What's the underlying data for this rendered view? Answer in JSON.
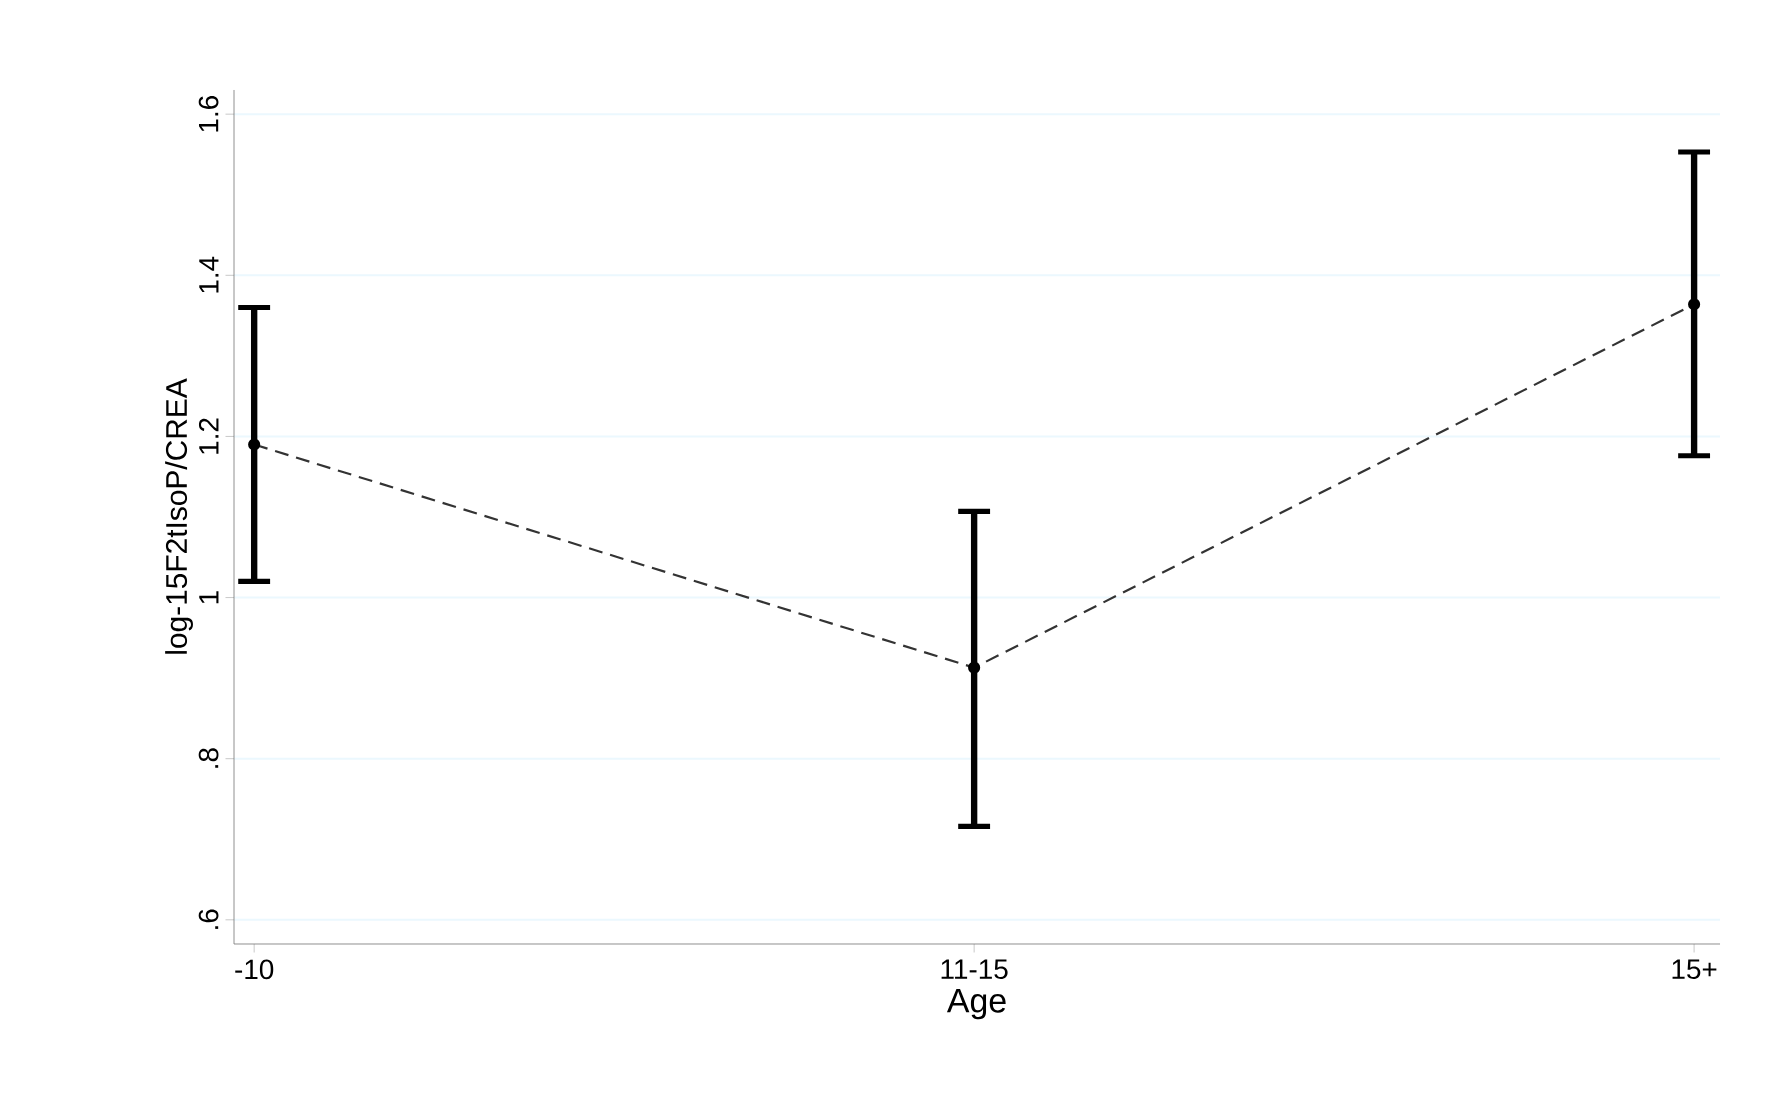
{
  "chart_data": {
    "type": "line",
    "xlabel": "Age",
    "ylabel": "log-15F2tIsoP/CREA",
    "categories": [
      "-10",
      "11-15",
      "15+"
    ],
    "series": [
      {
        "color": "#333333",
        "values": [
          1.19,
          0.913,
          1.364
        ],
        "errors": [
          [
            1.02,
            1.36
          ],
          [
            0.716,
            1.107
          ],
          [
            1.176,
            1.553
          ]
        ]
      }
    ],
    "ylim": [
      0.57,
      1.63
    ],
    "yticks": [
      {
        "value": 0.6,
        "label": ".6"
      },
      {
        "value": 0.8,
        "label": ".8"
      },
      1,
      {
        "value": 1.2,
        "label": "1.2"
      },
      {
        "value": 1.4,
        "label": "1.4"
      },
      {
        "value": 1.6,
        "label": "1.6"
      }
    ],
    "grid": "y",
    "marker": "circle",
    "line_style": "dashed"
  }
}
